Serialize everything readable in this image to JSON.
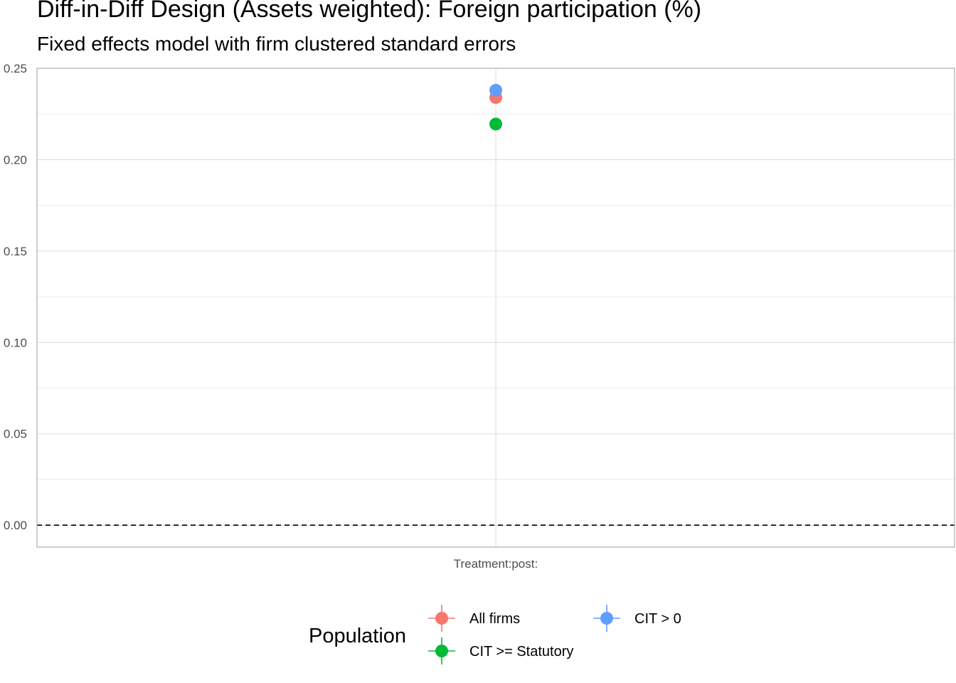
{
  "chart_data": {
    "type": "scatter",
    "title": "Diff-in-Diff Design (Assets weighted): Foreign participation (%)",
    "subtitle": "Fixed effects model with firm clustered standard errors",
    "xlabel": "",
    "ylabel": "",
    "categories": [
      "Treatment:post:"
    ],
    "ylim": [
      -0.012,
      0.25
    ],
    "yticks": [
      0.0,
      0.05,
      0.1,
      0.15,
      0.2,
      0.25
    ],
    "ytick_labels": [
      "0.00",
      "0.05",
      "0.10",
      "0.15",
      "0.20",
      "0.25"
    ],
    "reference_line": 0.0,
    "grid": true,
    "legend": {
      "title": "Population",
      "position": "bottom"
    },
    "series": [
      {
        "name": "All firms",
        "color": "#F8766D",
        "values": [
          0.234
        ]
      },
      {
        "name": "CIT >= Statutory",
        "color": "#00BA38",
        "values": [
          0.2195
        ]
      },
      {
        "name": "CIT > 0",
        "color": "#619CFF",
        "values": [
          0.238
        ]
      }
    ]
  }
}
